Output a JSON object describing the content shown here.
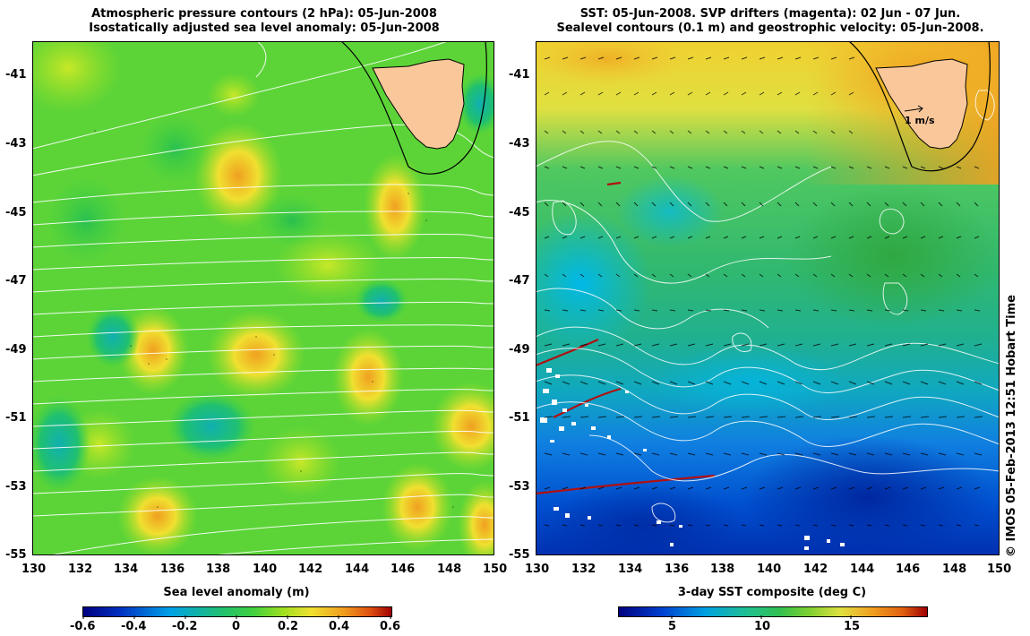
{
  "left_panel": {
    "title_line1": "Atmospheric pressure contours (2 hPa): 05-Jun-2008",
    "title_line2": "Isostatically adjusted sea level anomaly: 05-Jun-2008",
    "colorbar_label": "Sea level anomaly (m)",
    "colorbar_ticks": [
      "-0.6",
      "-0.4",
      "-0.2",
      "0",
      "0.2",
      "0.4",
      "0.6"
    ]
  },
  "right_panel": {
    "title_line1": "SST: 05-Jun-2008. SVP drifters (magenta): 02 Jun - 07 Jun.",
    "title_line2": "Sealevel contours (0.1 m) and geostrophic velocity: 05-Jun-2008.",
    "colorbar_label": "3-day SST composite (deg C)",
    "colorbar_ticks": [
      "5",
      "10",
      "15"
    ],
    "velocity_scale_label": "1 m/s"
  },
  "axes": {
    "lat_labels": [
      "-41",
      "-43",
      "-45",
      "-47",
      "-49",
      "-51",
      "-53",
      "-55"
    ],
    "lon_labels": [
      "130",
      "132",
      "134",
      "136",
      "138",
      "140",
      "142",
      "144",
      "146",
      "148",
      "150"
    ],
    "lat_range": [
      -55,
      -40
    ],
    "lon_range": [
      130,
      150
    ]
  },
  "credit": "© IMOS 05-Feb-2013 12:51 Hobart Time",
  "colors": {
    "land": "#f9c79a",
    "sla_colormap": [
      "#00007f",
      "#0030c0",
      "#00a0e8",
      "#20c070",
      "#40d040",
      "#a0e020",
      "#f0e030",
      "#f0a020",
      "#e05010",
      "#a00000"
    ],
    "sst_colormap": [
      "#00007f",
      "#0040d0",
      "#00a0e0",
      "#20c090",
      "#30c050",
      "#80d030",
      "#e0e040",
      "#f0a020",
      "#e06010",
      "#a00000"
    ]
  }
}
